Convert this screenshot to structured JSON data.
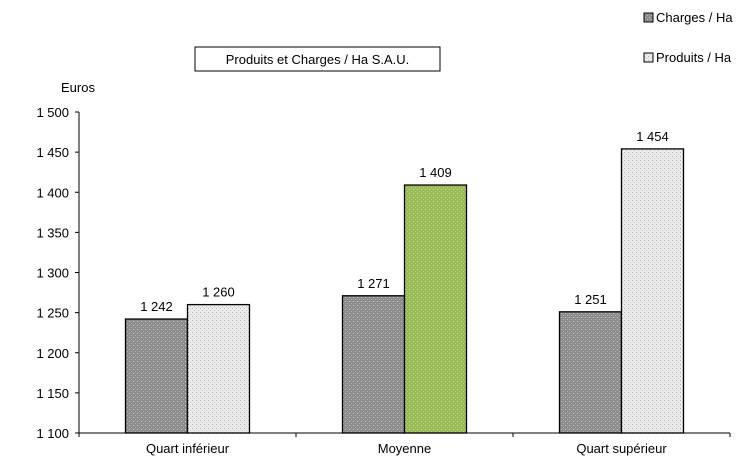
{
  "chart_data": {
    "type": "bar",
    "title": "Produits et Charges / Ha S.A.U.",
    "ylabel": "Euros",
    "xlabel": "",
    "categories": [
      "Quart inférieur",
      "Moyenne",
      "Quart supérieur"
    ],
    "series": [
      {
        "name": "Charges / Ha",
        "values": [
          1242,
          1271,
          1251
        ],
        "value_labels": [
          "1 242",
          "1 271",
          "1 251"
        ]
      },
      {
        "name": "Produits / Ha",
        "values": [
          1260,
          1409,
          1454
        ],
        "value_labels": [
          "1 260",
          "1 409",
          "1 454"
        ]
      }
    ],
    "ylim": [
      1100,
      1500
    ],
    "yticks": [
      1100,
      1150,
      1200,
      1250,
      1300,
      1350,
      1400,
      1450,
      1500
    ],
    "ytick_labels": [
      "1 100",
      "1 150",
      "1 200",
      "1 250",
      "1 300",
      "1 350",
      "1 400",
      "1 450",
      "1 500"
    ],
    "grid": false,
    "legend_position": "top-right",
    "colors": {
      "charges": "#8c8c8c",
      "produits": "#e6e6e6",
      "produits_highlight_moyenne": "#9bbb59"
    }
  }
}
